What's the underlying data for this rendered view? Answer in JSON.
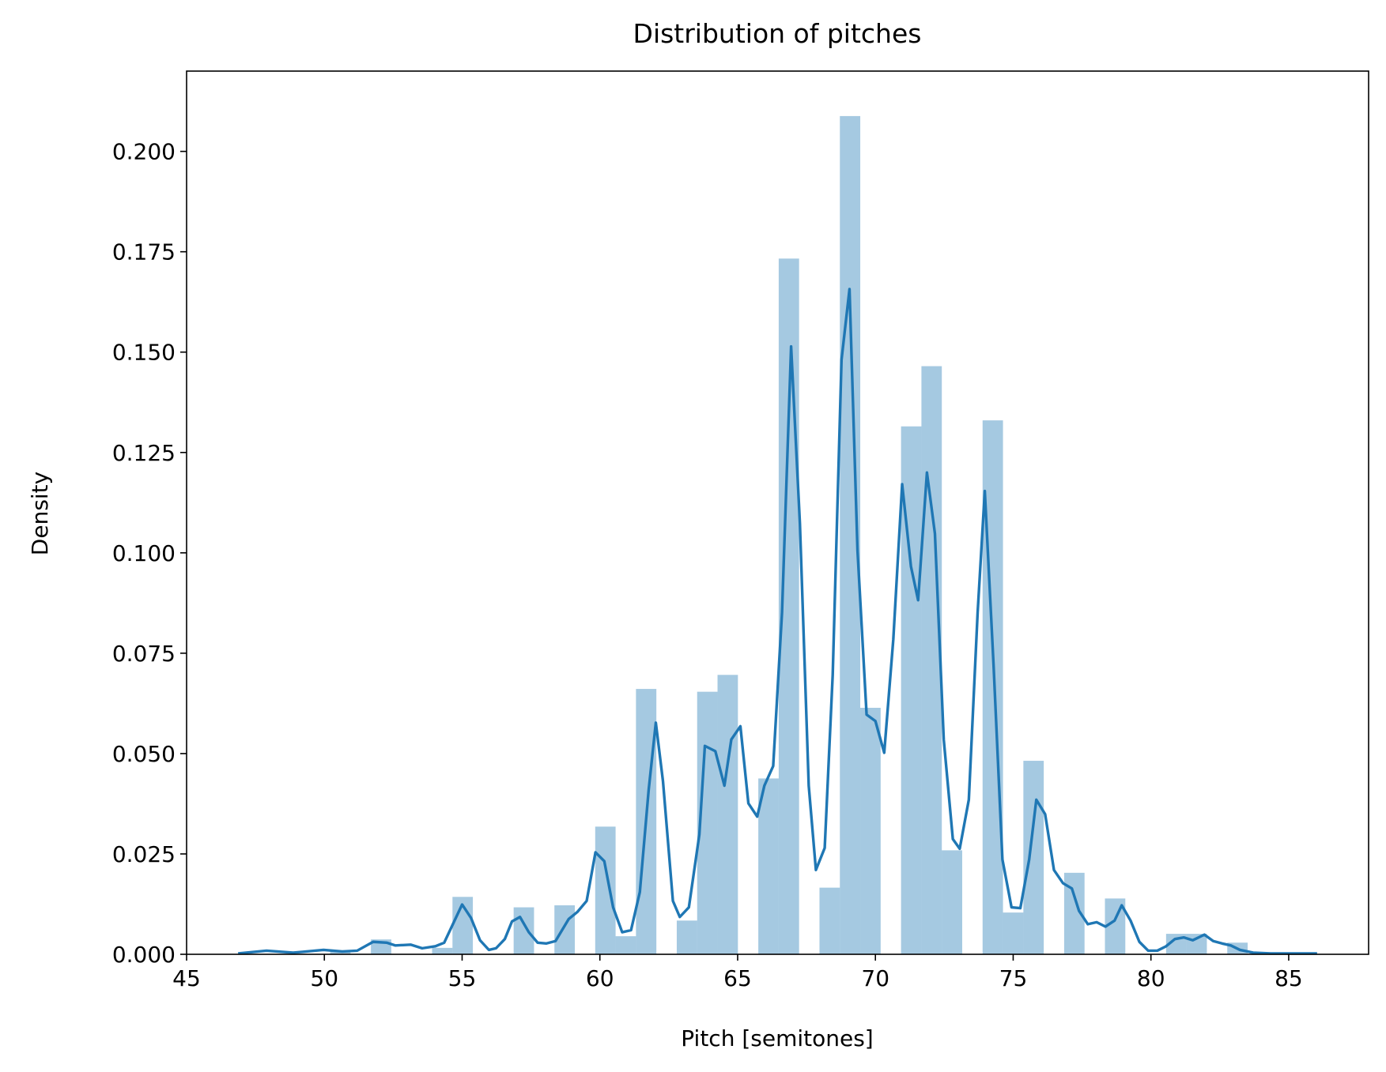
{
  "chart_data": {
    "type": "histogram",
    "title": "Distribution of pitches",
    "x_label": "Pitch [semitones]",
    "y_label": "Density",
    "bins": [
      47.25,
      47.99,
      48.73,
      49.47,
      50.21,
      50.95,
      51.69,
      52.43,
      53.17,
      53.91,
      54.65,
      55.39,
      56.13,
      56.87,
      57.61,
      58.35,
      59.09,
      59.83,
      60.57,
      61.31,
      62.05,
      62.79,
      63.53,
      64.27,
      65.01,
      65.75,
      66.49,
      67.23,
      67.97,
      68.71,
      69.45,
      70.19,
      70.93,
      71.67,
      72.41,
      73.15,
      73.89,
      74.63,
      75.37,
      76.11,
      76.85,
      77.59,
      78.33,
      79.07,
      79.81,
      80.55,
      81.29,
      82.03,
      82.77,
      83.51,
      84.25,
      84.99,
      85.73,
      86.47
    ],
    "values": [
      0,
      0,
      0,
      0,
      0.0008,
      0,
      0.0037,
      0,
      0,
      0.0016,
      0.0143,
      0,
      0,
      0.0117,
      0,
      0.0122,
      0,
      0.0318,
      0.0045,
      0.0661,
      0,
      0.0084,
      0.0654,
      0.0696,
      0,
      0.0438,
      0.1733,
      0,
      0.0166,
      0.2088,
      0.0614,
      0,
      0.1315,
      0.1465,
      0.0259,
      0,
      0.133,
      0.0104,
      0.0482,
      0,
      0.0203,
      0,
      0.0139,
      0,
      0,
      0.0051,
      0.0051,
      0,
      0.0029,
      0,
      0,
      0,
      0
    ],
    "color": "#1f77b4",
    "alpha": 0.4,
    "kde": {
      "x": [
        46.87,
        47.9,
        48.87,
        49.35,
        49.97,
        50.65,
        51.19,
        51.77,
        52.26,
        52.58,
        53.13,
        53.55,
        54.03,
        54.35,
        55.0,
        55.32,
        55.65,
        55.97,
        56.23,
        56.55,
        56.81,
        57.1,
        57.42,
        57.74,
        58.06,
        58.39,
        58.87,
        59.19,
        59.52,
        59.84,
        60.16,
        60.48,
        60.81,
        61.13,
        61.45,
        61.77,
        62.03,
        62.29,
        62.65,
        62.9,
        63.23,
        63.61,
        63.81,
        64.19,
        64.52,
        64.77,
        65.1,
        65.39,
        65.71,
        65.97,
        66.29,
        66.61,
        66.94,
        67.26,
        67.58,
        67.84,
        68.16,
        68.45,
        68.77,
        69.06,
        69.35,
        69.68,
        70.0,
        70.32,
        70.65,
        70.97,
        71.29,
        71.55,
        71.87,
        72.16,
        72.48,
        72.81,
        73.06,
        73.39,
        73.71,
        73.97,
        74.29,
        74.61,
        74.94,
        75.26,
        75.58,
        75.84,
        76.16,
        76.48,
        76.81,
        77.13,
        77.39,
        77.71,
        78.03,
        78.35,
        78.68,
        78.94,
        79.26,
        79.58,
        79.9,
        80.23,
        80.55,
        80.87,
        81.19,
        81.52,
        81.94,
        82.26,
        82.58,
        82.9,
        83.23,
        83.71,
        84.35,
        86.03
      ],
      "y": [
        0.0002,
        0.0009,
        0.0004,
        0.0007,
        0.0011,
        0.0007,
        0.0009,
        0.0031,
        0.0029,
        0.0022,
        0.0024,
        0.0015,
        0.002,
        0.0029,
        0.0124,
        0.0091,
        0.0035,
        0.0011,
        0.0015,
        0.0038,
        0.0082,
        0.0093,
        0.0055,
        0.0029,
        0.0027,
        0.0033,
        0.0088,
        0.0106,
        0.0133,
        0.0254,
        0.0232,
        0.0117,
        0.0055,
        0.006,
        0.0155,
        0.0409,
        0.0577,
        0.0431,
        0.0133,
        0.0093,
        0.0117,
        0.0298,
        0.0519,
        0.0506,
        0.042,
        0.0535,
        0.0568,
        0.0376,
        0.0343,
        0.042,
        0.0469,
        0.0851,
        0.1514,
        0.1072,
        0.042,
        0.021,
        0.0265,
        0.0696,
        0.1481,
        0.1657,
        0.1006,
        0.0597,
        0.0581,
        0.0502,
        0.0785,
        0.1171,
        0.0966,
        0.0882,
        0.12,
        0.1048,
        0.0535,
        0.0287,
        0.0263,
        0.0385,
        0.0851,
        0.1154,
        0.0718,
        0.0236,
        0.0117,
        0.0115,
        0.0236,
        0.0385,
        0.0349,
        0.021,
        0.0177,
        0.0164,
        0.0108,
        0.0075,
        0.008,
        0.0069,
        0.0084,
        0.0122,
        0.0084,
        0.0031,
        0.0009,
        0.0009,
        0.002,
        0.0038,
        0.0042,
        0.0035,
        0.0049,
        0.0033,
        0.0027,
        0.0022,
        0.0011,
        0.0004,
        0.0002,
        0.0002
      ]
    },
    "xlim": [
      45,
      87.9
    ],
    "ylim": [
      0,
      0.22
    ],
    "xticks": [
      45,
      50,
      55,
      60,
      65,
      70,
      75,
      80,
      85
    ],
    "yticks": [
      {
        "value": 0,
        "label": "0.000"
      },
      {
        "value": 0.025,
        "label": "0.025"
      },
      {
        "value": 0.05,
        "label": "0.050"
      },
      {
        "value": 0.075,
        "label": "0.075"
      },
      {
        "value": 0.1,
        "label": "0.100"
      },
      {
        "value": 0.125,
        "label": "0.125"
      },
      {
        "value": 0.15,
        "label": "0.150"
      },
      {
        "value": 0.175,
        "label": "0.175"
      },
      {
        "value": 0.2,
        "label": "0.200"
      }
    ],
    "grid": false
  }
}
